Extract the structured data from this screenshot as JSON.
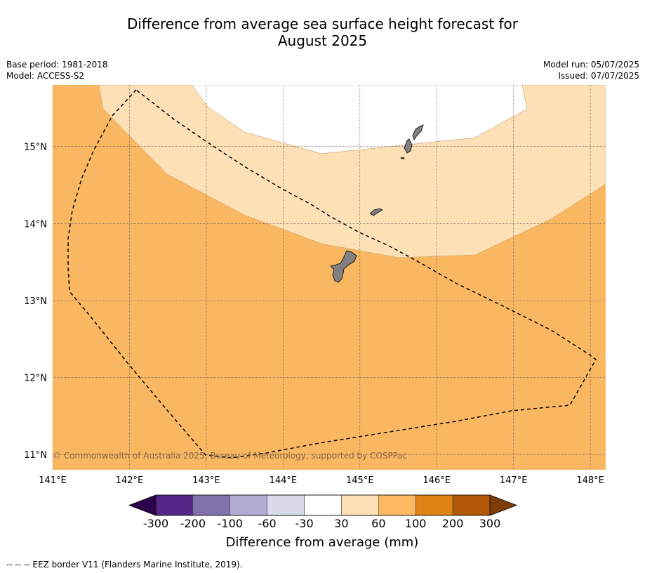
{
  "title": {
    "line1": "Difference from average sea surface height forecast for",
    "line2": "August 2025"
  },
  "meta_left": {
    "base_period": "Base period: 1981-2018",
    "model": "Model: ACCESS-S2"
  },
  "meta_right": {
    "model_run": "Model run: 05/07/2025",
    "issued": "Issued: 07/07/2025"
  },
  "map": {
    "lat_labels": [
      "15°N",
      "14°N",
      "13°N",
      "12°N",
      "11°N"
    ],
    "lon_labels": [
      "141°E",
      "142°E",
      "143°E",
      "144°E",
      "145°E",
      "146°E",
      "147°E",
      "148°E"
    ],
    "lat_range": [
      10.8,
      15.8
    ],
    "lon_range": [
      141.0,
      148.2
    ],
    "land_color": "#808080",
    "copyright": "© Commonwealth of Australia 2025, Bureau of Meteorology, supported by COSPPac",
    "regions": [
      {
        "category": "30 to 60 mm",
        "color": "#fde0b6"
      },
      {
        "category": "60 to 100 mm",
        "color": "#fab762"
      }
    ]
  },
  "colorbar": {
    "title": "Difference from average (mm)",
    "tick_labels": [
      "-300",
      "-200",
      "-100",
      "-60",
      "-30",
      "30",
      "60",
      "100",
      "200",
      "300"
    ],
    "under_color": "#2d004b",
    "over_color": "#7f3b08",
    "colors": [
      "#542788",
      "#8073ac",
      "#b2abd2",
      "#d8daeb",
      "#ffffff",
      "#fee0b6",
      "#fdb863",
      "#e08214",
      "#b35806"
    ]
  },
  "footnote": "--  --  -- EEZ border V11 (Flanders Marine Institute, 2019)."
}
